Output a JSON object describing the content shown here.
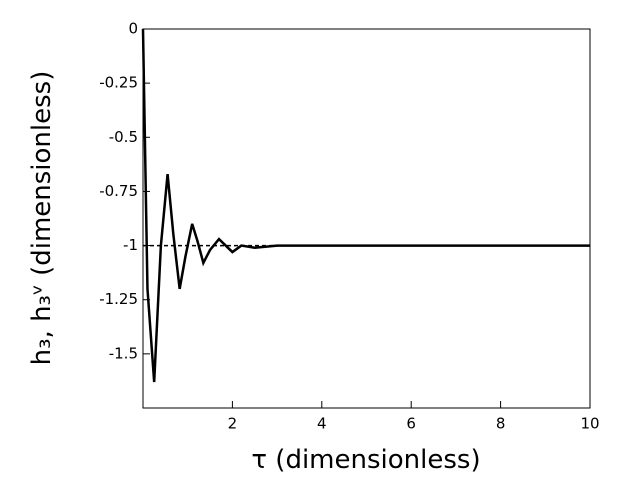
{
  "chart_data": {
    "type": "line",
    "x_label": "τ (dimensionless)",
    "y_label": "h₃, h₃ᵛ (dimensionless)",
    "xlim": [
      0,
      10
    ],
    "xticks": [
      2,
      4,
      6,
      8,
      10
    ],
    "ylim": [
      -1.75,
      0
    ],
    "yticks": [
      0,
      -0.25,
      -0.5,
      -0.75,
      -1,
      -1.25,
      -1.5
    ],
    "series": [
      {
        "color": "#000000",
        "style": "solid",
        "x": [
          0,
          0.1,
          0.25,
          0.4,
          0.55,
          0.68,
          0.82,
          0.95,
          1.1,
          1.22,
          1.35,
          1.5,
          1.7,
          1.85,
          2.0,
          2.2,
          2.5,
          3,
          10
        ],
        "values": [
          0,
          -1.2,
          -1.63,
          -1.0,
          -0.67,
          -0.95,
          -1.2,
          -1.05,
          -0.9,
          -0.98,
          -1.08,
          -1.02,
          -0.97,
          -1.0,
          -1.03,
          -1.0,
          -1.01,
          -1.0,
          -1.0
        ]
      },
      {
        "color": "#000000",
        "style": "dashed",
        "x": [
          0,
          10
        ],
        "values": [
          -1,
          -1
        ]
      }
    ]
  }
}
